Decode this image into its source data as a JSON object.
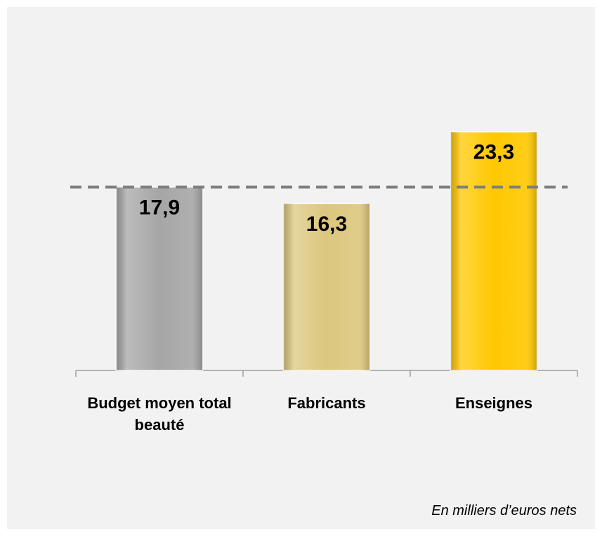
{
  "chart_data": {
    "type": "bar",
    "categories": [
      "Budget moyen total beauté",
      "Fabricants",
      "Enseignes"
    ],
    "values": [
      17.9,
      16.3,
      23.3
    ],
    "value_labels": [
      "17,9",
      "16,3",
      "23,3"
    ],
    "colors": [
      "#a6a6a6",
      "#dcc77e",
      "#ffc800"
    ],
    "ylim": [
      0,
      30
    ],
    "note": "En milliers d’euros nets"
  }
}
